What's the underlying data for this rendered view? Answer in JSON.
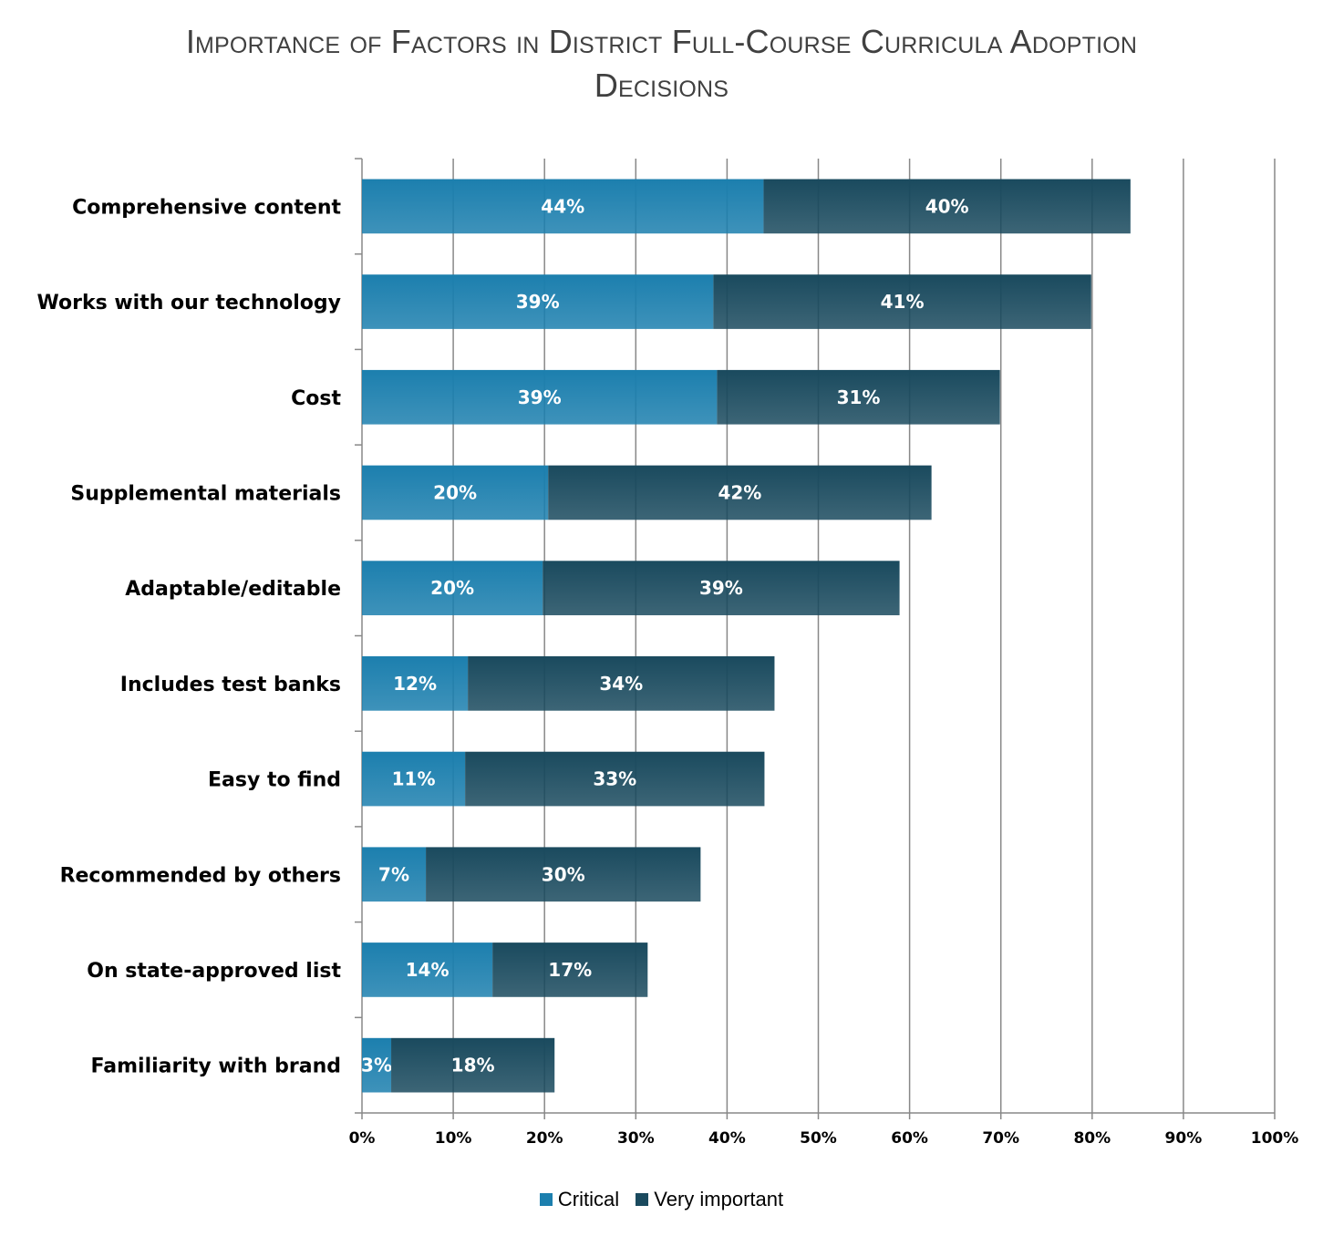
{
  "chart_data": {
    "type": "bar",
    "orientation": "horizontal",
    "stacked": true,
    "title_lines": [
      "Importance of Factors in District Full-Course Curricula Adoption",
      "Decisions"
    ],
    "categories": [
      "Comprehensive content",
      "Works with our technology",
      "Cost",
      "Supplemental materials",
      "Adaptable/editable",
      "Includes test banks",
      "Easy to find",
      "Recommended by others",
      "On state-approved list",
      "Familiarity with brand"
    ],
    "series": [
      {
        "name": "Critical",
        "color": "#1c7fae",
        "values": [
          44,
          38.5,
          38.9,
          20.4,
          19.8,
          11.6,
          11.3,
          7,
          14.3,
          3.2
        ],
        "labels": [
          "44%",
          "39%",
          "39%",
          "20%",
          "20%",
          "12%",
          "11%",
          "7%",
          "14%",
          "3%"
        ]
      },
      {
        "name": "Very important",
        "color": "#1a4a5e",
        "values": [
          40.2,
          41.4,
          31.0,
          42.0,
          39.1,
          33.6,
          32.8,
          30.1,
          17.0,
          17.9
        ],
        "labels": [
          "40%",
          "41%",
          "31%",
          "42%",
          "39%",
          "34%",
          "33%",
          "30%",
          "17%",
          "18%"
        ]
      }
    ],
    "xlim": [
      0,
      100
    ],
    "x_ticks": [
      0,
      10,
      20,
      30,
      40,
      50,
      60,
      70,
      80,
      90,
      100
    ],
    "x_tick_labels": [
      "0%",
      "10%",
      "20%",
      "30%",
      "40%",
      "50%",
      "60%",
      "70%",
      "80%",
      "90%",
      "100%"
    ],
    "grid": "vertical",
    "legend_position": "bottom"
  }
}
